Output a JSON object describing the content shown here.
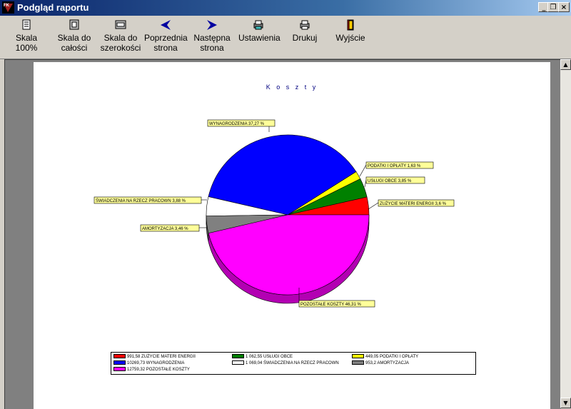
{
  "window": {
    "title": "Podgląd raportu",
    "app_icon": "fk-app-icon",
    "controls": [
      "minimize-icon",
      "restore-icon",
      "close-icon"
    ]
  },
  "toolbar": {
    "buttons": [
      {
        "label": "Skala\n100%",
        "icon": "page-icon"
      },
      {
        "label": "Skala do\ncałości",
        "icon": "fit-page-icon"
      },
      {
        "label": "Skala do\nszerokości",
        "icon": "fit-width-icon"
      },
      {
        "label": "Poprzednia\nstrona",
        "icon": "arrow-left-icon"
      },
      {
        "label": "Następna\nstrona",
        "icon": "arrow-right-icon"
      },
      {
        "label": "Ustawienia",
        "icon": "printer-setup-icon"
      },
      {
        "label": "Drukuj",
        "icon": "printer-icon"
      },
      {
        "label": "Wyjście",
        "icon": "exit-door-icon"
      }
    ]
  },
  "report": {
    "title": "K o s z t y"
  },
  "chart_data": {
    "type": "pie",
    "title": "K o s z t y",
    "slices": [
      {
        "name": "ZUŻYCIE MATERI ENERGII",
        "percent": 3.6,
        "value": "991,58",
        "color": "#ff0000",
        "label": "ZUŻYCIE MATERI ENERGII 3,6 %"
      },
      {
        "name": "USŁUGI OBCE",
        "percent": 3.85,
        "value": "1 062,55",
        "color": "#008000",
        "label": "USŁUGI OBCE 3,85 %"
      },
      {
        "name": "PODATKI I OPŁATY",
        "percent": 1.63,
        "value": "449,05",
        "color": "#ffff00",
        "label": "PODATKI I OPŁATY 1,63 %"
      },
      {
        "name": "WYNAGRODZENIA",
        "percent": 37.27,
        "value": "10269,73",
        "color": "#0000ff",
        "label": "WYNAGRODZENIA 37,27 %"
      },
      {
        "name": "ŚWIADCZENIA NA RZECZ PRACOWN",
        "percent": 3.88,
        "value": "1 069,04",
        "color": "#ffffff",
        "label": "ŚWIADCZENIA NA RZECZ PRACOWN 3,88 %"
      },
      {
        "name": "AMORTYZACJA",
        "percent": 3.46,
        "value": "953,2",
        "color": "#808080",
        "label": "AMORTYZACJA 3,46 %"
      },
      {
        "name": "POZOSTAŁE KOSZTY",
        "percent": 46.31,
        "value": "12759,32",
        "color": "#ff00ff",
        "label": "POZOSTAŁE KOSZTY 46,31 %"
      }
    ],
    "legend": [
      {
        "text": "991,58 ZUŻYCIE MATERI ENERGII",
        "color": "#ff0000"
      },
      {
        "text": "1 062,55 USŁUGI OBCE",
        "color": "#008000"
      },
      {
        "text": "449,05 PODATKI I OPŁATY",
        "color": "#ffff00"
      },
      {
        "text": "10269,73 WYNAGRODZENIA",
        "color": "#0000ff"
      },
      {
        "text": "1 069,04 ŚWIADCZENIA NA RZECZ PRACOWN",
        "color": "#ffffff"
      },
      {
        "text": "953,2 AMORTYZACJA",
        "color": "#808080"
      },
      {
        "text": "12759,32 POZOSTAŁE KOSZTY",
        "color": "#ff00ff"
      }
    ],
    "legend_placement": "bottom"
  }
}
